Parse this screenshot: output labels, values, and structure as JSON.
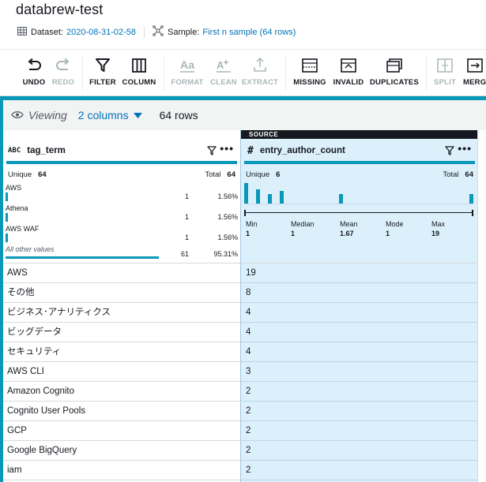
{
  "header": {
    "title": "databrew-test",
    "dataset_label": "Dataset:",
    "dataset_value": "2020-08-31-02-58",
    "sample_label": "Sample:",
    "sample_value": "First n sample (64 rows)"
  },
  "toolbar": {
    "undo": "UNDO",
    "redo": "REDO",
    "filter": "FILTER",
    "column": "COLUMN",
    "format": "FORMAT",
    "clean": "CLEAN",
    "extract": "EXTRACT",
    "missing": "MISSING",
    "invalid": "INVALID",
    "duplicates": "DUPLICATES",
    "split": "SPLIT",
    "merge": "MERGE"
  },
  "viewing": {
    "label": "Viewing",
    "columns": "2 columns",
    "rows": "64 rows"
  },
  "source_tag": "SOURCE",
  "col_a": {
    "type": "ABC",
    "name": "tag_term",
    "unique_label": "Unique",
    "unique_value": "64",
    "total_label": "Total",
    "total_value": "64",
    "top_values": [
      {
        "label": "AWS",
        "count": "1",
        "pct": "1.56%"
      },
      {
        "label": "Athena",
        "count": "1",
        "pct": "1.56%"
      },
      {
        "label": "AWS WAF",
        "count": "1",
        "pct": "1.56%"
      }
    ],
    "other": {
      "label": "All other values",
      "count": "61",
      "pct": "95.31%"
    },
    "rows": [
      "AWS",
      "その他",
      "ビジネス･アナリティクス",
      "ビッグデータ",
      "セキュリティ",
      "AWS CLI",
      "Amazon Cognito",
      "Cognito User Pools",
      "GCP",
      "Google BigQuery",
      "iam"
    ]
  },
  "col_b": {
    "type": "#",
    "name": "entry_author_count",
    "unique_label": "Unique",
    "unique_value": "6",
    "total_label": "Total",
    "total_value": "64",
    "histogram": [
      {
        "x": 0,
        "h": 1.0
      },
      {
        "x": 1,
        "h": 0.68
      },
      {
        "x": 2,
        "h": 0.45
      },
      {
        "x": 3,
        "h": 0.62
      },
      {
        "x": 8,
        "h": 0.45
      },
      {
        "x": 19,
        "h": 0.45
      }
    ],
    "summary": [
      {
        "label": "Min",
        "value": "1"
      },
      {
        "label": "Median",
        "value": "1"
      },
      {
        "label": "Mean",
        "value": "1.67"
      },
      {
        "label": "Mode",
        "value": "1"
      },
      {
        "label": "Max",
        "value": "19"
      }
    ],
    "rows": [
      "19",
      "8",
      "4",
      "4",
      "4",
      "3",
      "2",
      "2",
      "2",
      "2",
      "2"
    ]
  }
}
